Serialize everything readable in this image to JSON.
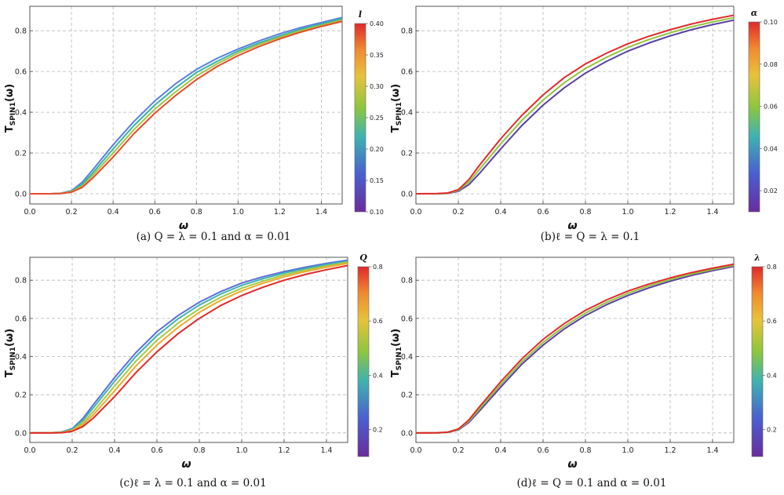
{
  "chart_data": [
    {
      "type": "line",
      "panel": "a",
      "caption": "(a) Q = λ = 0.1 and α = 0.01",
      "xlabel": "ω",
      "ylabel": "T_SPIN1(ω)",
      "xlim": [
        0,
        1.5
      ],
      "ylim": [
        -0.05,
        0.92
      ],
      "xticks": [
        "0.0",
        "0.2",
        "0.4",
        "0.6",
        "0.8",
        "1.0",
        "1.2",
        "1.4"
      ],
      "yticks": [
        "0.0",
        "0.2",
        "0.4",
        "0.6",
        "0.8"
      ],
      "grid": true,
      "colorbar": {
        "title": "l",
        "range": [
          0.1,
          0.4
        ],
        "ticks": [
          "0.10",
          "0.15",
          "0.20",
          "0.25",
          "0.30",
          "0.35",
          "0.40"
        ]
      },
      "series": [
        {
          "param": 0.1,
          "color": "#5b7fdc",
          "x": [
            0,
            0.1,
            0.15,
            0.2,
            0.25,
            0.3,
            0.4,
            0.5,
            0.6,
            0.7,
            0.8,
            0.9,
            1.0,
            1.1,
            1.2,
            1.3,
            1.4,
            1.5
          ],
          "y": [
            0,
            0,
            0.003,
            0.015,
            0.055,
            0.115,
            0.24,
            0.355,
            0.455,
            0.54,
            0.61,
            0.665,
            0.71,
            0.75,
            0.785,
            0.815,
            0.84,
            0.865
          ]
        },
        {
          "param": 0.2,
          "color": "#35b3a6",
          "x": [
            0,
            0.1,
            0.15,
            0.2,
            0.25,
            0.3,
            0.4,
            0.5,
            0.6,
            0.7,
            0.8,
            0.9,
            1.0,
            1.1,
            1.2,
            1.3,
            1.4,
            1.5
          ],
          "y": [
            0,
            0,
            0.002,
            0.012,
            0.045,
            0.1,
            0.22,
            0.335,
            0.435,
            0.52,
            0.595,
            0.65,
            0.7,
            0.74,
            0.775,
            0.807,
            0.833,
            0.858
          ]
        },
        {
          "param": 0.3,
          "color": "#a7c23b",
          "x": [
            0,
            0.1,
            0.15,
            0.2,
            0.25,
            0.3,
            0.4,
            0.5,
            0.6,
            0.7,
            0.8,
            0.9,
            1.0,
            1.1,
            1.2,
            1.3,
            1.4,
            1.5
          ],
          "y": [
            0,
            0,
            0.002,
            0.01,
            0.037,
            0.088,
            0.2,
            0.315,
            0.415,
            0.5,
            0.578,
            0.638,
            0.69,
            0.732,
            0.768,
            0.8,
            0.827,
            0.852
          ]
        },
        {
          "param": 0.4,
          "color": "#e94a2c",
          "x": [
            0,
            0.1,
            0.15,
            0.2,
            0.25,
            0.3,
            0.4,
            0.5,
            0.6,
            0.7,
            0.8,
            0.9,
            1.0,
            1.1,
            1.2,
            1.3,
            1.4,
            1.5
          ],
          "y": [
            0,
            0,
            0.001,
            0.008,
            0.03,
            0.075,
            0.18,
            0.295,
            0.395,
            0.482,
            0.56,
            0.625,
            0.678,
            0.722,
            0.76,
            0.793,
            0.821,
            0.846
          ]
        }
      ]
    },
    {
      "type": "line",
      "panel": "b",
      "caption": "(b)ℓ = Q = λ = 0.1",
      "xlabel": "ω",
      "ylabel": "T_SPIN1(ω)",
      "xlim": [
        0,
        1.5
      ],
      "ylim": [
        -0.05,
        0.92
      ],
      "xticks": [
        "0.0",
        "0.2",
        "0.4",
        "0.6",
        "0.8",
        "1.0",
        "1.2",
        "1.4"
      ],
      "yticks": [
        "0.0",
        "0.2",
        "0.4",
        "0.6",
        "0.8"
      ],
      "grid": true,
      "colorbar": {
        "title": "α",
        "range": [
          0.01,
          0.1
        ],
        "ticks": [
          "0.02",
          "0.04",
          "0.06",
          "0.08",
          "0.10"
        ]
      },
      "series": [
        {
          "param": 0.01,
          "color": "#5a3fa8",
          "x": [
            0,
            0.1,
            0.15,
            0.2,
            0.25,
            0.3,
            0.4,
            0.5,
            0.6,
            0.7,
            0.8,
            0.9,
            1.0,
            1.1,
            1.2,
            1.3,
            1.4,
            1.5
          ],
          "y": [
            0,
            0,
            0.002,
            0.012,
            0.045,
            0.1,
            0.22,
            0.335,
            0.435,
            0.52,
            0.592,
            0.65,
            0.7,
            0.74,
            0.775,
            0.805,
            0.83,
            0.852
          ]
        },
        {
          "param": 0.055,
          "color": "#8cc63f",
          "x": [
            0,
            0.1,
            0.15,
            0.2,
            0.25,
            0.3,
            0.4,
            0.5,
            0.6,
            0.7,
            0.8,
            0.9,
            1.0,
            1.1,
            1.2,
            1.3,
            1.4,
            1.5
          ],
          "y": [
            0,
            0,
            0.003,
            0.016,
            0.057,
            0.12,
            0.245,
            0.36,
            0.46,
            0.545,
            0.615,
            0.67,
            0.718,
            0.757,
            0.79,
            0.819,
            0.843,
            0.864
          ]
        },
        {
          "param": 0.1,
          "color": "#e02a2a",
          "x": [
            0,
            0.1,
            0.15,
            0.2,
            0.25,
            0.3,
            0.4,
            0.5,
            0.6,
            0.7,
            0.8,
            0.9,
            1.0,
            1.1,
            1.2,
            1.3,
            1.4,
            1.5
          ],
          "y": [
            0,
            0.001,
            0.004,
            0.02,
            0.07,
            0.14,
            0.27,
            0.385,
            0.485,
            0.57,
            0.637,
            0.69,
            0.736,
            0.773,
            0.805,
            0.833,
            0.856,
            0.876
          ]
        }
      ]
    },
    {
      "type": "line",
      "panel": "c",
      "caption": "(c)ℓ = λ = 0.1 and α = 0.01",
      "xlabel": "ω",
      "ylabel": "T_SPIN1(ω)",
      "xlim": [
        0,
        1.5
      ],
      "ylim": [
        -0.05,
        0.92
      ],
      "xticks": [
        "0.0",
        "0.2",
        "0.4",
        "0.6",
        "0.8",
        "1.0",
        "1.2",
        "1.4"
      ],
      "yticks": [
        "0.0",
        "0.2",
        "0.4",
        "0.6",
        "0.8"
      ],
      "grid": true,
      "colorbar": {
        "title": "Q",
        "range": [
          0.1,
          0.8
        ],
        "ticks": [
          "0.2",
          "0.4",
          "0.6",
          "0.8"
        ]
      },
      "series": [
        {
          "param": 0.1,
          "color": "#5b6fd8",
          "x": [
            0,
            0.1,
            0.15,
            0.2,
            0.25,
            0.3,
            0.4,
            0.5,
            0.6,
            0.7,
            0.8,
            0.9,
            1.0,
            1.1,
            1.2,
            1.3,
            1.4,
            1.5
          ],
          "y": [
            0,
            0.001,
            0.005,
            0.022,
            0.075,
            0.148,
            0.29,
            0.42,
            0.53,
            0.615,
            0.685,
            0.74,
            0.785,
            0.818,
            0.845,
            0.868,
            0.888,
            0.905
          ]
        },
        {
          "param": 0.3,
          "color": "#3fb3b0",
          "x": [
            0,
            0.1,
            0.15,
            0.2,
            0.25,
            0.3,
            0.4,
            0.5,
            0.6,
            0.7,
            0.8,
            0.9,
            1.0,
            1.1,
            1.2,
            1.3,
            1.4,
            1.5
          ],
          "y": [
            0,
            0.001,
            0.004,
            0.018,
            0.065,
            0.132,
            0.27,
            0.4,
            0.51,
            0.598,
            0.67,
            0.727,
            0.773,
            0.808,
            0.837,
            0.861,
            0.882,
            0.9
          ]
        },
        {
          "param": 0.5,
          "color": "#a8c93e",
          "x": [
            0,
            0.1,
            0.15,
            0.2,
            0.25,
            0.3,
            0.4,
            0.5,
            0.6,
            0.7,
            0.8,
            0.9,
            1.0,
            1.1,
            1.2,
            1.3,
            1.4,
            1.5
          ],
          "y": [
            0,
            0.001,
            0.003,
            0.014,
            0.053,
            0.112,
            0.245,
            0.375,
            0.485,
            0.575,
            0.65,
            0.71,
            0.758,
            0.795,
            0.827,
            0.853,
            0.875,
            0.894
          ]
        },
        {
          "param": 0.65,
          "color": "#f0a830",
          "x": [
            0,
            0.1,
            0.15,
            0.2,
            0.25,
            0.3,
            0.4,
            0.5,
            0.6,
            0.7,
            0.8,
            0.9,
            1.0,
            1.1,
            1.2,
            1.3,
            1.4,
            1.5
          ],
          "y": [
            0,
            0,
            0.002,
            0.011,
            0.043,
            0.095,
            0.22,
            0.35,
            0.46,
            0.553,
            0.632,
            0.694,
            0.744,
            0.784,
            0.817,
            0.845,
            0.868,
            0.888
          ]
        },
        {
          "param": 0.8,
          "color": "#e02a2a",
          "x": [
            0,
            0.1,
            0.15,
            0.2,
            0.25,
            0.3,
            0.4,
            0.5,
            0.6,
            0.7,
            0.8,
            0.9,
            1.0,
            1.1,
            1.2,
            1.3,
            1.4,
            1.5
          ],
          "y": [
            0,
            0,
            0.001,
            0.008,
            0.033,
            0.078,
            0.19,
            0.315,
            0.425,
            0.52,
            0.6,
            0.667,
            0.72,
            0.763,
            0.8,
            0.83,
            0.855,
            0.877
          ]
        }
      ]
    },
    {
      "type": "line",
      "panel": "d",
      "caption": "(d)ℓ = Q = 0.1 and α = 0.01",
      "xlabel": "ω",
      "ylabel": "T_SPIN1(ω)",
      "xlim": [
        0,
        1.5
      ],
      "ylim": [
        -0.05,
        0.92
      ],
      "xticks": [
        "0.0",
        "0.2",
        "0.4",
        "0.6",
        "0.8",
        "1.0",
        "1.2",
        "1.4"
      ],
      "yticks": [
        "0.0",
        "0.2",
        "0.4",
        "0.6",
        "0.8"
      ],
      "grid": true,
      "colorbar": {
        "title": "λ",
        "range": [
          0.1,
          0.8
        ],
        "ticks": [
          "0.2",
          "0.4",
          "0.6",
          "0.8"
        ]
      },
      "series": [
        {
          "param": 0.1,
          "color": "#5a3fa8",
          "x": [
            0,
            0.1,
            0.15,
            0.2,
            0.25,
            0.3,
            0.4,
            0.5,
            0.6,
            0.7,
            0.8,
            0.9,
            1.0,
            1.1,
            1.2,
            1.3,
            1.4,
            1.5
          ],
          "y": [
            0,
            0,
            0.003,
            0.015,
            0.055,
            0.115,
            0.24,
            0.36,
            0.46,
            0.545,
            0.615,
            0.672,
            0.72,
            0.76,
            0.795,
            0.825,
            0.85,
            0.872
          ]
        },
        {
          "param": 0.45,
          "color": "#8cc63f",
          "x": [
            0,
            0.1,
            0.15,
            0.2,
            0.25,
            0.3,
            0.4,
            0.5,
            0.6,
            0.7,
            0.8,
            0.9,
            1.0,
            1.1,
            1.2,
            1.3,
            1.4,
            1.5
          ],
          "y": [
            0,
            0,
            0.003,
            0.017,
            0.061,
            0.125,
            0.254,
            0.373,
            0.474,
            0.558,
            0.628,
            0.684,
            0.731,
            0.77,
            0.803,
            0.832,
            0.856,
            0.878
          ]
        },
        {
          "param": 0.8,
          "color": "#e02a2a",
          "x": [
            0,
            0.1,
            0.15,
            0.2,
            0.25,
            0.3,
            0.4,
            0.5,
            0.6,
            0.7,
            0.8,
            0.9,
            1.0,
            1.1,
            1.2,
            1.3,
            1.4,
            1.5
          ],
          "y": [
            0,
            0.001,
            0.004,
            0.02,
            0.068,
            0.137,
            0.268,
            0.388,
            0.49,
            0.573,
            0.642,
            0.697,
            0.743,
            0.78,
            0.812,
            0.84,
            0.863,
            0.884
          ]
        }
      ]
    }
  ]
}
